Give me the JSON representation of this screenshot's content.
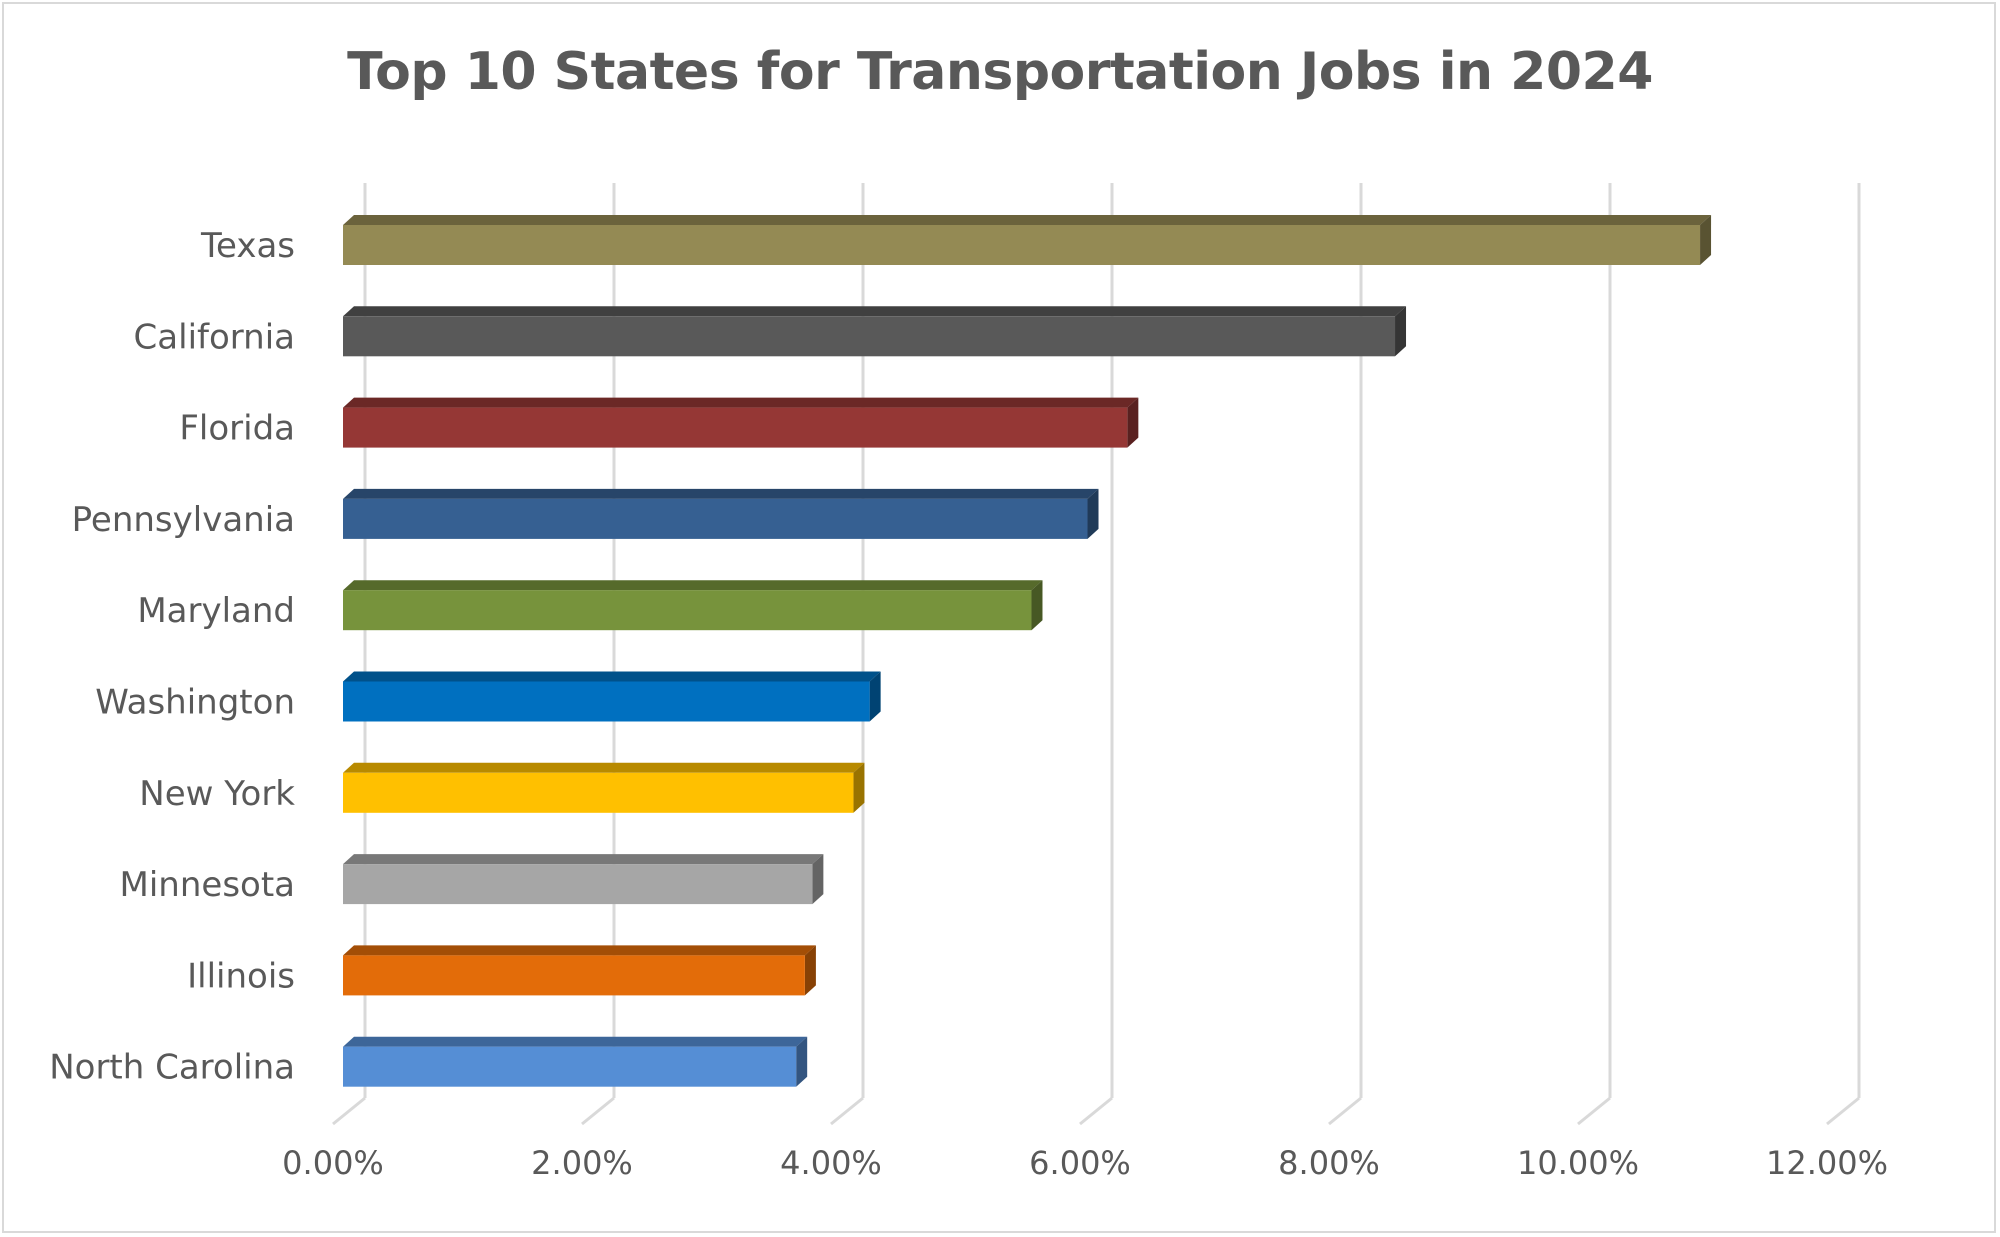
{
  "chart_data": {
    "type": "bar",
    "orientation": "horizontal",
    "title": "Top 10 States for Transportation Jobs in 2024",
    "categories": [
      "Texas",
      "California",
      "Florida",
      "Pennsylvania",
      "Maryland",
      "Washington",
      "New York",
      "Minnesota",
      "Illinois",
      "North Carolina"
    ],
    "values": [
      10.9,
      8.45,
      6.3,
      5.98,
      5.53,
      4.23,
      4.1,
      3.77,
      3.71,
      3.64
    ],
    "colors": [
      "#948a54",
      "#595959",
      "#953735",
      "#366092",
      "#77933c",
      "#0070c0",
      "#ffc000",
      "#a6a6a6",
      "#e36c09",
      "#558ed5"
    ],
    "xlim": [
      0,
      12
    ],
    "xticks": [
      0,
      2,
      4,
      6,
      8,
      10,
      12
    ],
    "xtick_labels": [
      "0.00%",
      "2.00%",
      "4.00%",
      "6.00%",
      "8.00%",
      "10.00%",
      "12.00%"
    ],
    "xlabel": "",
    "ylabel": "",
    "grid": true,
    "legend": "none"
  }
}
